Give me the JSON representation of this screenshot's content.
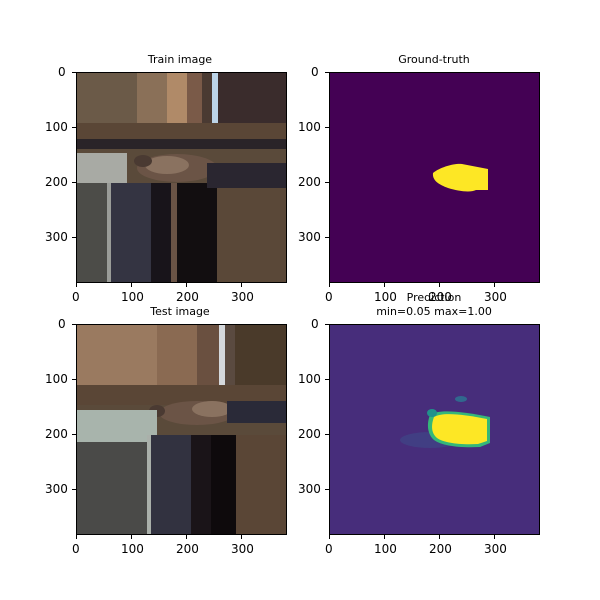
{
  "figure": {
    "panels": [
      {
        "id": "train",
        "title": "Train image",
        "x_ticks": [
          "0",
          "100",
          "200",
          "300"
        ],
        "y_ticks": [
          "0",
          "100",
          "200",
          "300"
        ]
      },
      {
        "id": "gt",
        "title": "Ground-truth",
        "x_ticks": [
          "0",
          "100",
          "200",
          "300"
        ],
        "y_ticks": [
          "0",
          "100",
          "200",
          "300"
        ]
      },
      {
        "id": "test",
        "title": "Test image",
        "x_ticks": [
          "0",
          "100",
          "200",
          "300"
        ],
        "y_ticks": [
          "0",
          "100",
          "200",
          "300"
        ]
      },
      {
        "id": "pred",
        "title": "Prediction",
        "subtitle": "min=0.05 max=1.00",
        "x_ticks": [
          "0",
          "100",
          "200",
          "300"
        ],
        "y_ticks": [
          "0",
          "100",
          "200",
          "300"
        ]
      }
    ],
    "colors": {
      "mask_background": "#440154",
      "mask_foreground": "#fde725",
      "pred_background": "#472d7b",
      "pred_edge": "#35b779"
    }
  }
}
